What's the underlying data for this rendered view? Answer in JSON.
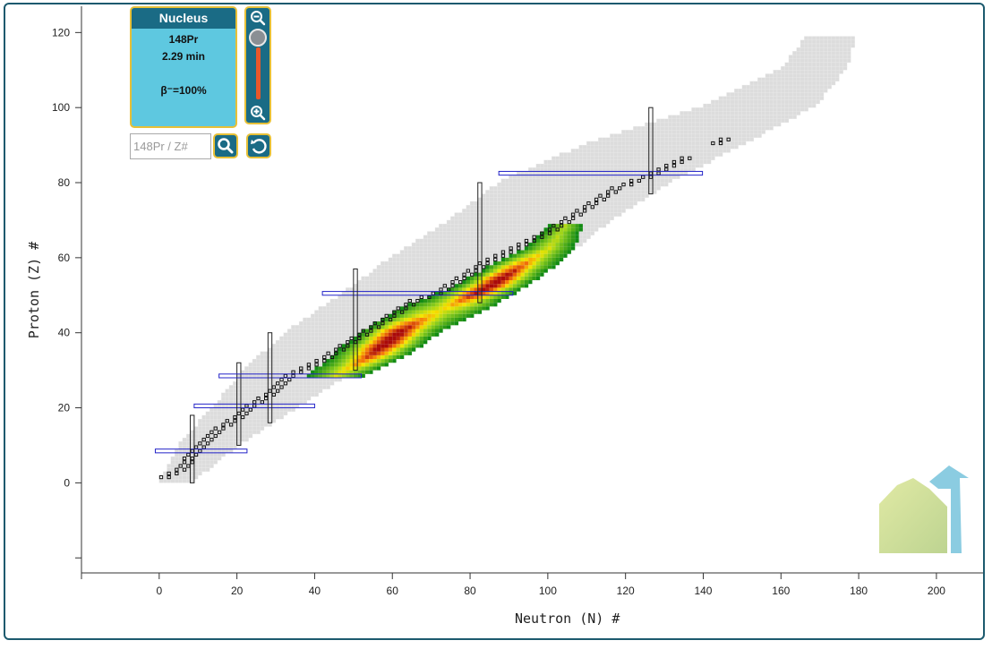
{
  "nucleus_panel": {
    "title": "Nucleus",
    "name": "148Pr",
    "half_life": "2.29 min",
    "decay": "β⁻=100%"
  },
  "search": {
    "placeholder": "148Pr / Z#"
  },
  "colors": {
    "frame": "#1c5a6e",
    "panel_bg": "#5ec8e0",
    "panel_header": "#1a6b85",
    "panel_border": "#e7c037",
    "known_nuclide": "#dcdcdc",
    "stable_outline": "#111111",
    "magic_box": "#2323c8",
    "heat_low": "#1a9a1a",
    "heat_mid": "#f0e000",
    "heat_high": "#c01010"
  },
  "chart_data": {
    "type": "heatmap",
    "xlabel": "Neutron (N) #",
    "ylabel": "Proton (Z) #",
    "x_ticks": [
      0,
      20,
      40,
      60,
      80,
      100,
      120,
      140,
      160,
      180,
      200
    ],
    "y_ticks": [
      0,
      20,
      40,
      60,
      80,
      100,
      120
    ],
    "xlim": [
      -20,
      212
    ],
    "ylim": [
      -24,
      127
    ],
    "magic_numbers": [
      8,
      20,
      28,
      50,
      82,
      126
    ],
    "known_region": [
      {
        "z": 0,
        "n_min": 0,
        "n_max": 8
      },
      {
        "z": 10,
        "n_min": 5,
        "n_max": 20
      },
      {
        "z": 20,
        "n_min": 14,
        "n_max": 35
      },
      {
        "z": 30,
        "n_min": 22,
        "n_max": 50
      },
      {
        "z": 40,
        "n_min": 33,
        "n_max": 68
      },
      {
        "z": 50,
        "n_min": 47,
        "n_max": 86
      },
      {
        "z": 60,
        "n_min": 60,
        "n_max": 104
      },
      {
        "z": 70,
        "n_min": 75,
        "n_max": 116
      },
      {
        "z": 80,
        "n_min": 88,
        "n_max": 131
      },
      {
        "z": 90,
        "n_min": 110,
        "n_max": 150
      },
      {
        "z": 100,
        "n_min": 140,
        "n_max": 168
      },
      {
        "z": 110,
        "n_min": 160,
        "n_max": 176
      },
      {
        "z": 118,
        "n_min": 166,
        "n_max": 178
      }
    ],
    "stable_valley": [
      {
        "z": 1,
        "n": 0
      },
      {
        "z": 2,
        "n": 2
      },
      {
        "z": 4,
        "n": 5
      },
      {
        "z": 6,
        "n": 6
      },
      {
        "z": 8,
        "n": 8
      },
      {
        "z": 10,
        "n": 10
      },
      {
        "z": 14,
        "n": 14
      },
      {
        "z": 18,
        "n": 20
      },
      {
        "z": 20,
        "n": 22
      },
      {
        "z": 24,
        "n": 28
      },
      {
        "z": 28,
        "n": 32
      },
      {
        "z": 32,
        "n": 40
      },
      {
        "z": 36,
        "n": 46
      },
      {
        "z": 40,
        "n": 52
      },
      {
        "z": 44,
        "n": 58
      },
      {
        "z": 48,
        "n": 64
      },
      {
        "z": 50,
        "n": 70
      },
      {
        "z": 54,
        "n": 76
      },
      {
        "z": 58,
        "n": 82
      },
      {
        "z": 62,
        "n": 90
      },
      {
        "z": 66,
        "n": 98
      },
      {
        "z": 70,
        "n": 104
      },
      {
        "z": 74,
        "n": 110
      },
      {
        "z": 78,
        "n": 116
      },
      {
        "z": 82,
        "n": 126
      },
      {
        "z": 90,
        "n": 142
      },
      {
        "z": 92,
        "n": 146
      }
    ],
    "fission_yield_region": [
      {
        "z": 28,
        "n_min": 38,
        "n_max": 52
      },
      {
        "z": 34,
        "n_min": 45,
        "n_max": 64
      },
      {
        "z": 40,
        "n_min": 52,
        "n_max": 72
      },
      {
        "z": 46,
        "n_min": 62,
        "n_max": 84
      },
      {
        "z": 52,
        "n_min": 76,
        "n_max": 94
      },
      {
        "z": 58,
        "n_min": 86,
        "n_max": 102
      },
      {
        "z": 62,
        "n_min": 94,
        "n_max": 106
      },
      {
        "z": 68,
        "n_min": 100,
        "n_max": 108
      }
    ],
    "yield_peaks": [
      {
        "z": 38,
        "n": 58
      },
      {
        "z": 54,
        "n": 84
      }
    ]
  }
}
